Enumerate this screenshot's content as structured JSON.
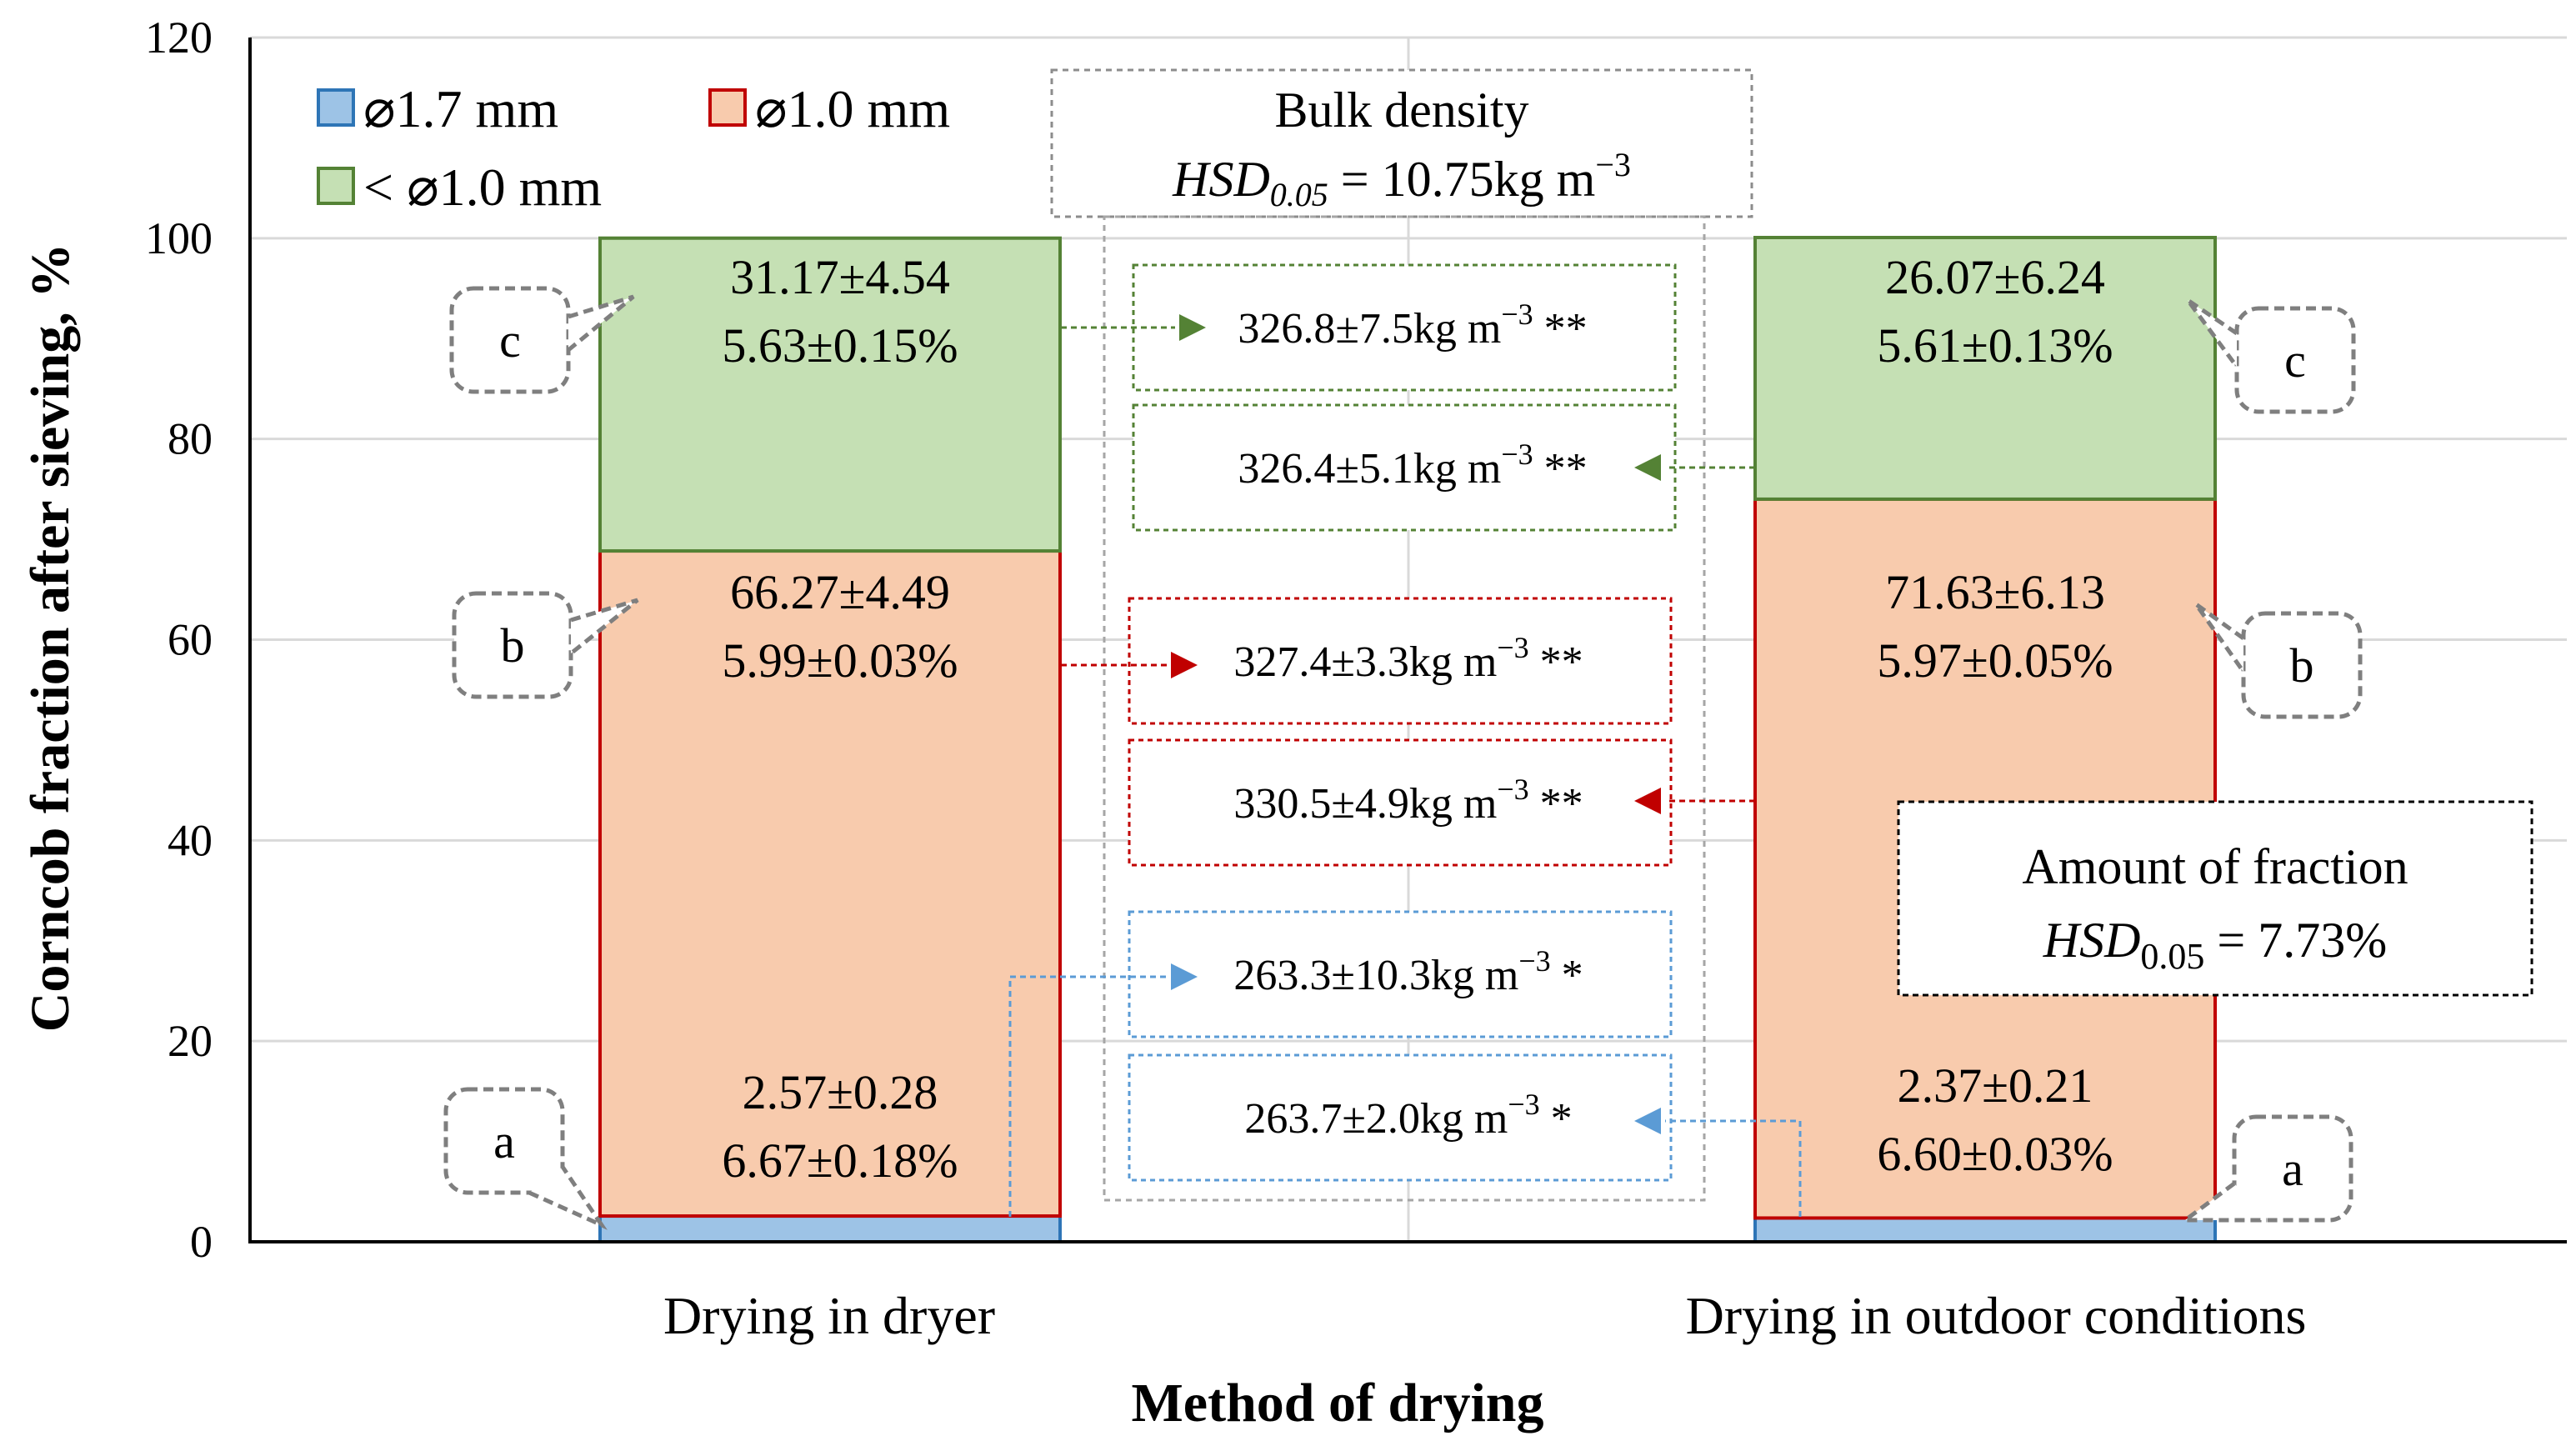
{
  "chart_data": {
    "type": "bar",
    "stacked": true,
    "categories": [
      "Drying in dryer",
      "Drying in outdoor conditions"
    ],
    "xlabel": "Method of drying",
    "ylabel": "Corncob fraction after sieving, %",
    "ylim": [
      0,
      120
    ],
    "yticks": [
      0,
      20,
      40,
      60,
      80,
      100,
      120
    ],
    "grid": true,
    "legend_position": "top-left",
    "series": [
      {
        "name": "⌀1.7 mm",
        "values": [
          2.57,
          2.37
        ],
        "color": "#9DC3E6",
        "edge": "#2E75B6",
        "labels": [
          [
            "2.57±0.28",
            "6.67±0.18%"
          ],
          [
            "2.37±0.21",
            "6.60±0.03%"
          ]
        ],
        "letters": [
          "a",
          "a"
        ]
      },
      {
        "name": "⌀1.0 mm",
        "values": [
          66.27,
          71.63
        ],
        "color": "#F8CBAD",
        "edge": "#C00000",
        "labels": [
          [
            "66.27±4.49",
            "5.99±0.03%"
          ],
          [
            "71.63±6.13",
            "5.97±0.05%"
          ]
        ],
        "letters": [
          "b",
          "b"
        ]
      },
      {
        "name": "< ⌀1.0 mm",
        "values": [
          31.17,
          26.07
        ],
        "color": "#C5E0B4",
        "edge": "#548235",
        "labels": [
          [
            "31.17±4.54",
            "5.63±0.15%"
          ],
          [
            "26.07±6.24",
            "5.61±0.13%"
          ]
        ],
        "letters": [
          "c",
          "c"
        ]
      }
    ],
    "bulk_density": {
      "title": "Bulk density",
      "hsd_label": "HSD",
      "hsd_sub": "0.05",
      "hsd_value": " = 10.75kg m",
      "hsd_exp": "−3",
      "entries": [
        {
          "text": "326.8±7.5kg m",
          "exp": "−3",
          "tail": " **",
          "color": "#548235",
          "from": "left"
        },
        {
          "text": "326.4±5.1kg m",
          "exp": "−3",
          "tail": " **",
          "color": "#548235",
          "from": "right"
        },
        {
          "text": "327.4±3.3kg m",
          "exp": "−3",
          "tail": " **",
          "color": "#C00000",
          "from": "left"
        },
        {
          "text": "330.5±4.9kg m",
          "exp": "−3",
          "tail": " **",
          "color": "#C00000",
          "from": "right"
        },
        {
          "text": "263.3±10.3kg m",
          "exp": "−3",
          "tail": " *",
          "color": "#5B9BD5",
          "from": "left"
        },
        {
          "text": "263.7±2.0kg m",
          "exp": "−3",
          "tail": " *",
          "color": "#5B9BD5",
          "from": "right"
        }
      ]
    },
    "amount_of_fraction": {
      "title": "Amount of fraction",
      "hsd_label": "HSD",
      "hsd_sub": "0.05",
      "hsd_value": " = 7.73%"
    }
  }
}
